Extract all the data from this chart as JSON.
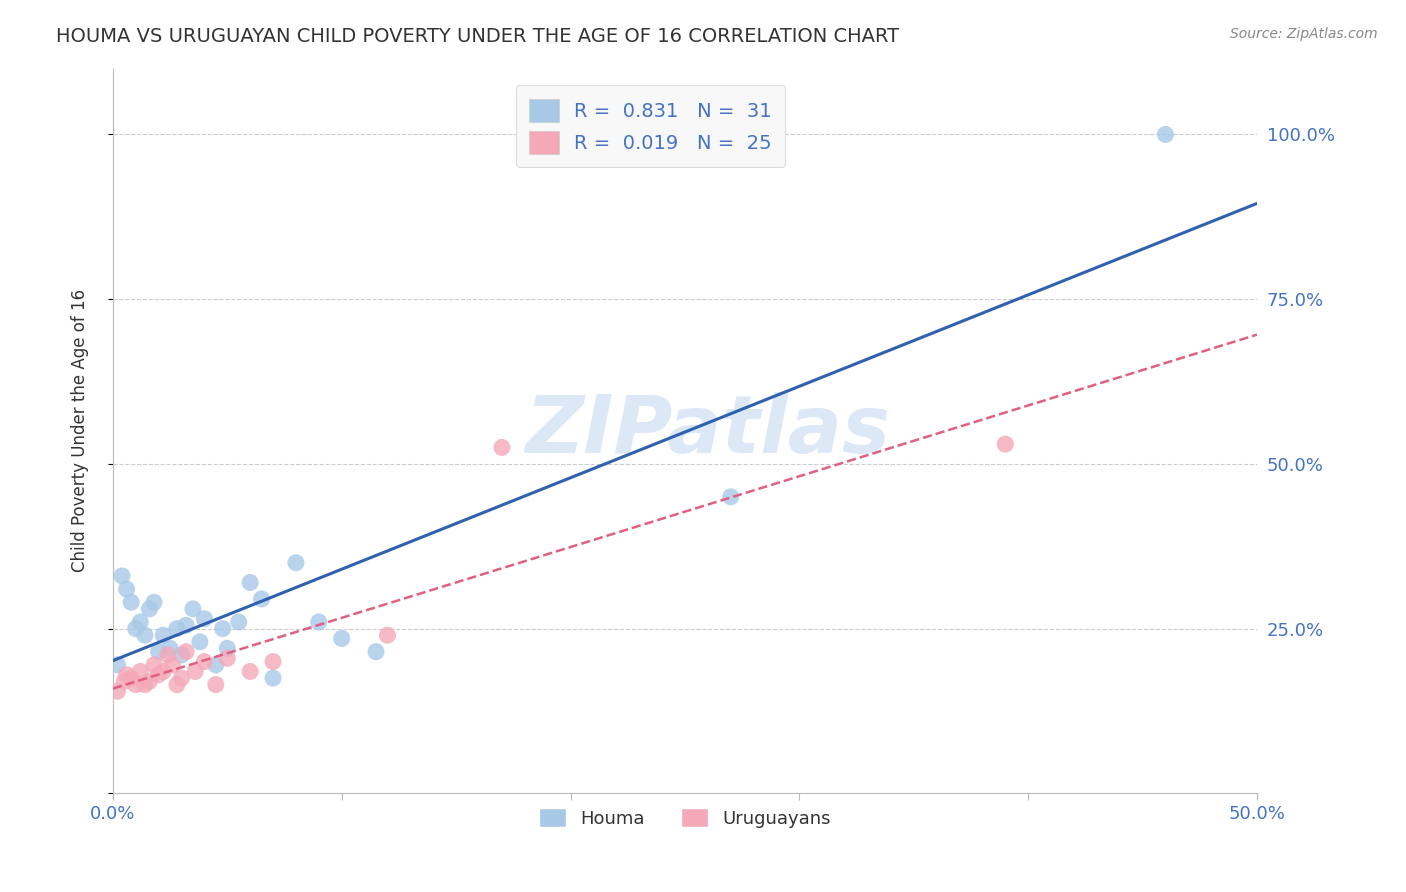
{
  "title": "HOUMA VS URUGUAYAN CHILD POVERTY UNDER THE AGE OF 16 CORRELATION CHART",
  "source_text": "Source: ZipAtlas.com",
  "xlabel": "",
  "ylabel": "Child Poverty Under the Age of 16",
  "xlim": [
    0.0,
    0.5
  ],
  "ylim": [
    0.0,
    1.1
  ],
  "xticks": [
    0.0,
    0.1,
    0.2,
    0.3,
    0.4,
    0.5
  ],
  "xtick_labels": [
    "0.0%",
    "",
    "",
    "",
    "",
    "50.0%"
  ],
  "yticks": [
    0.0,
    0.25,
    0.5,
    0.75,
    1.0
  ],
  "ytick_labels_right": [
    "",
    "25.0%",
    "50.0%",
    "75.0%",
    "100.0%"
  ],
  "houma_R": 0.831,
  "houma_N": 31,
  "uruguayan_R": 0.019,
  "uruguayan_N": 25,
  "houma_color": "#a8c8e8",
  "uruguayan_color": "#f4a8b8",
  "houma_line_color": "#3060b0",
  "uruguayan_line_color": "#e06080",
  "background_color": "#ffffff",
  "grid_color": "#cccccc",
  "watermark_color": "#dce8f5",
  "tick_label_color": "#4472c4",
  "title_color": "#333333",
  "legend_text_color": "#333333",
  "legend_value_color": "#4472c4",
  "houma_scatter_x": [
    0.002,
    0.004,
    0.006,
    0.008,
    0.01,
    0.012,
    0.014,
    0.016,
    0.018,
    0.02,
    0.022,
    0.025,
    0.028,
    0.03,
    0.032,
    0.035,
    0.038,
    0.04,
    0.045,
    0.048,
    0.05,
    0.055,
    0.06,
    0.065,
    0.07,
    0.08,
    0.09,
    0.1,
    0.115,
    0.27,
    0.46
  ],
  "houma_scatter_y": [
    0.195,
    0.33,
    0.31,
    0.29,
    0.25,
    0.26,
    0.24,
    0.28,
    0.29,
    0.215,
    0.24,
    0.22,
    0.25,
    0.21,
    0.255,
    0.28,
    0.23,
    0.265,
    0.195,
    0.25,
    0.22,
    0.26,
    0.32,
    0.295,
    0.175,
    0.35,
    0.26,
    0.235,
    0.215,
    0.45,
    1.0
  ],
  "uruguayan_scatter_x": [
    0.002,
    0.005,
    0.006,
    0.008,
    0.01,
    0.012,
    0.014,
    0.016,
    0.018,
    0.02,
    0.022,
    0.024,
    0.026,
    0.028,
    0.03,
    0.032,
    0.036,
    0.04,
    0.045,
    0.05,
    0.06,
    0.07,
    0.12,
    0.17,
    0.39
  ],
  "uruguayan_scatter_y": [
    0.155,
    0.17,
    0.18,
    0.175,
    0.165,
    0.185,
    0.165,
    0.17,
    0.195,
    0.18,
    0.185,
    0.21,
    0.195,
    0.165,
    0.175,
    0.215,
    0.185,
    0.2,
    0.165,
    0.205,
    0.185,
    0.2,
    0.24,
    0.525,
    0.53
  ],
  "legend_box_color": "#f8f8f8",
  "legend_border_color": "#dddddd"
}
